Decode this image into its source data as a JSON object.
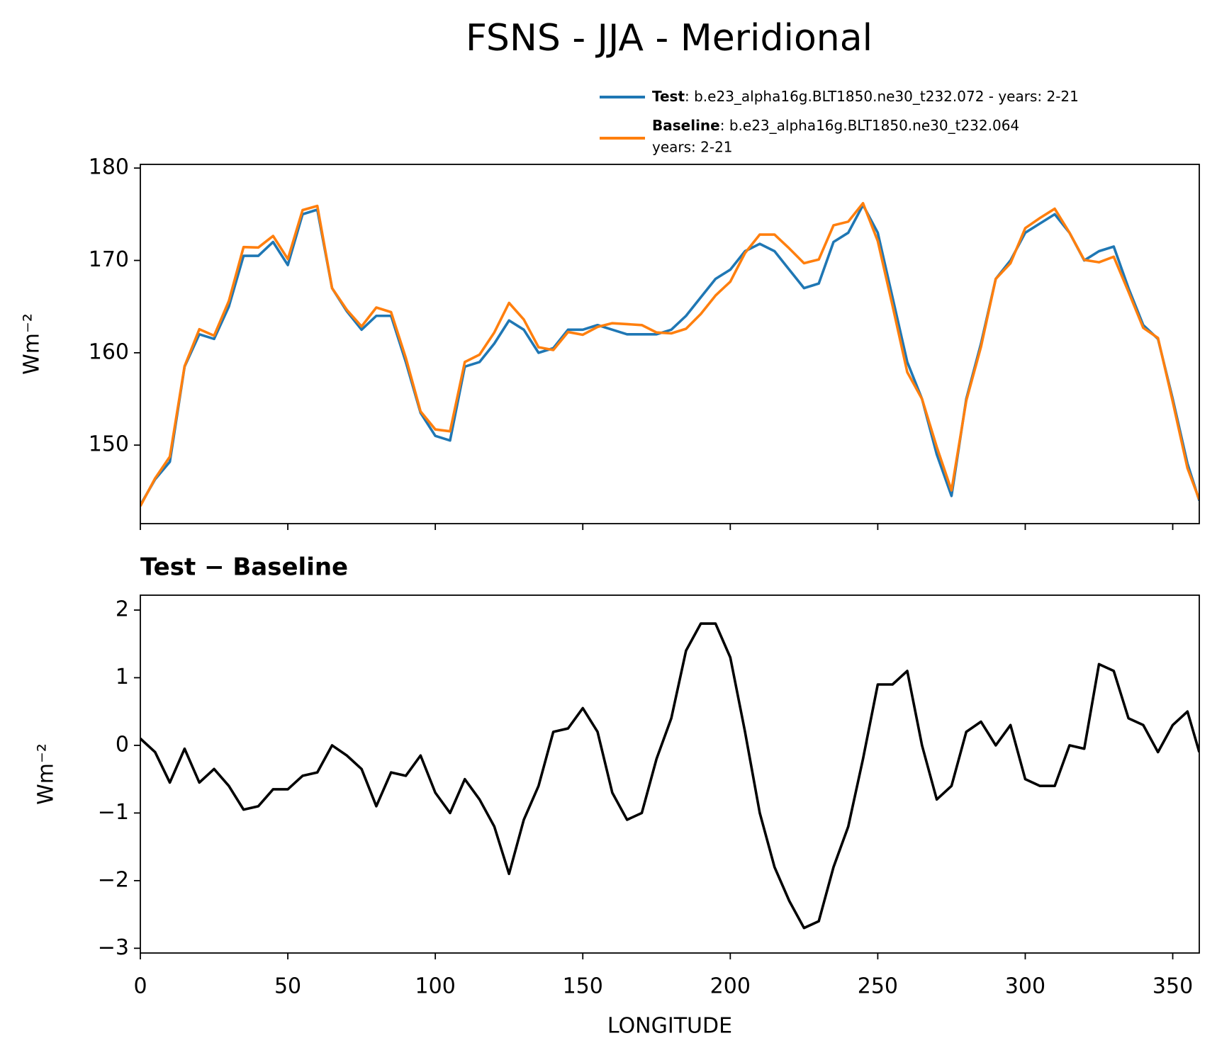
{
  "title": "FSNS - JJA - Meridional",
  "chart_data": [
    {
      "type": "line",
      "ylabel": "Wm⁻²",
      "x": [
        0,
        5,
        10,
        15,
        20,
        25,
        30,
        35,
        40,
        45,
        50,
        55,
        60,
        65,
        70,
        75,
        80,
        85,
        90,
        95,
        100,
        105,
        110,
        115,
        120,
        125,
        130,
        135,
        140,
        145,
        150,
        155,
        160,
        165,
        170,
        175,
        180,
        185,
        190,
        195,
        200,
        205,
        210,
        215,
        220,
        225,
        230,
        235,
        240,
        245,
        250,
        255,
        260,
        265,
        270,
        275,
        280,
        285,
        290,
        295,
        300,
        305,
        310,
        315,
        320,
        325,
        330,
        335,
        340,
        345,
        350,
        355,
        359
      ],
      "xlim": [
        0,
        359
      ],
      "xticks": [
        0,
        50,
        100,
        150,
        200,
        250,
        300,
        350
      ],
      "xtick_labels": false,
      "ylim": [
        141.5,
        180.4
      ],
      "yticks": [
        150,
        160,
        170,
        180
      ],
      "series": [
        {
          "name": "Test",
          "description": [
            ": b.e23_alpha16g.BLT1850.ne30_t232.072 - years: 2-21"
          ],
          "color": "#1f77b4",
          "values": [
            143.5,
            146.3,
            148.2,
            158.5,
            162,
            161.5,
            165,
            170.5,
            170.5,
            172,
            169.5,
            175,
            175.5,
            167,
            164.5,
            162.5,
            164,
            164,
            159,
            153.5,
            151,
            150.5,
            158.5,
            159,
            161,
            163.5,
            162.5,
            160,
            160.5,
            162.5,
            162.5,
            163,
            162.5,
            162,
            162,
            162,
            162.5,
            164,
            166,
            168,
            169,
            171,
            171.8,
            171,
            169,
            167,
            167.5,
            172,
            173,
            176,
            173,
            166,
            159,
            155,
            149,
            144.5,
            155,
            161,
            168,
            170,
            173,
            174,
            175,
            173,
            170,
            171,
            171.5,
            167,
            163,
            161.5,
            155,
            148,
            144
          ]
        },
        {
          "name": "Baseline",
          "description": [
            ": b.e23_alpha16g.BLT1850.ne30_t232.064",
            "years: 2-21"
          ],
          "color": "#ff7f0e",
          "values": [
            143.4,
            146.4,
            148.75,
            158.55,
            162.55,
            161.85,
            165.6,
            171.45,
            171.4,
            172.65,
            170.15,
            175.45,
            175.9,
            167,
            164.65,
            162.85,
            164.9,
            164.4,
            159.45,
            153.65,
            151.7,
            151.5,
            159,
            159.8,
            162.2,
            165.4,
            163.6,
            160.6,
            160.3,
            162.25,
            161.95,
            162.8,
            163.2,
            163.1,
            163,
            162.2,
            162.1,
            162.6,
            164.2,
            166.2,
            167.7,
            170.8,
            172.8,
            172.8,
            171.3,
            169.7,
            170.1,
            173.8,
            174.2,
            176.2,
            172.1,
            165.1,
            157.9,
            155,
            149.8,
            145.1,
            154.8,
            160.65,
            168,
            169.7,
            173.5,
            174.6,
            175.6,
            173,
            170.05,
            169.8,
            170.4,
            166.6,
            162.7,
            161.6,
            154.7,
            147.5,
            144.1
          ]
        }
      ]
    },
    {
      "type": "line",
      "title": "Test − Baseline",
      "ylabel": "Wm⁻²",
      "xlabel": "LONGITUDE",
      "x": [
        0,
        5,
        10,
        15,
        20,
        25,
        30,
        35,
        40,
        45,
        50,
        55,
        60,
        65,
        70,
        75,
        80,
        85,
        90,
        95,
        100,
        105,
        110,
        115,
        120,
        125,
        130,
        135,
        140,
        145,
        150,
        155,
        160,
        165,
        170,
        175,
        180,
        185,
        190,
        195,
        200,
        205,
        210,
        215,
        220,
        225,
        230,
        235,
        240,
        245,
        250,
        255,
        260,
        265,
        270,
        275,
        280,
        285,
        290,
        295,
        300,
        305,
        310,
        315,
        320,
        325,
        330,
        335,
        340,
        345,
        350,
        355,
        359
      ],
      "xlim": [
        0,
        359
      ],
      "xticks": [
        0,
        50,
        100,
        150,
        200,
        250,
        300,
        350
      ],
      "ylim": [
        -3.07,
        2.22
      ],
      "yticks": [
        {
          "value": -3,
          "label": "−3"
        },
        {
          "value": -2,
          "label": "−2"
        },
        {
          "value": -1,
          "label": "−1"
        },
        0,
        1,
        2
      ],
      "series": [
        {
          "color": "#000000",
          "values": [
            0.1,
            -0.1,
            -0.55,
            -0.05,
            -0.55,
            -0.35,
            -0.6,
            -0.95,
            -0.9,
            -0.65,
            -0.65,
            -0.45,
            -0.4,
            0,
            -0.15,
            -0.35,
            -0.9,
            -0.4,
            -0.45,
            -0.15,
            -0.7,
            -1.0,
            -0.5,
            -0.8,
            -1.2,
            -1.9,
            -1.1,
            -0.6,
            0.2,
            0.25,
            0.55,
            0.2,
            -0.7,
            -1.1,
            -1.0,
            -0.2,
            0.4,
            1.4,
            1.8,
            1.8,
            1.3,
            0.2,
            -1.0,
            -1.8,
            -2.3,
            -2.7,
            -2.6,
            -1.8,
            -1.2,
            -0.2,
            0.9,
            0.9,
            1.1,
            0.0,
            -0.8,
            -0.6,
            0.2,
            0.35,
            0.0,
            0.3,
            -0.5,
            -0.6,
            -0.6,
            0.0,
            -0.05,
            1.2,
            1.1,
            0.4,
            0.3,
            -0.1,
            0.3,
            0.5,
            -0.1
          ]
        }
      ]
    }
  ]
}
